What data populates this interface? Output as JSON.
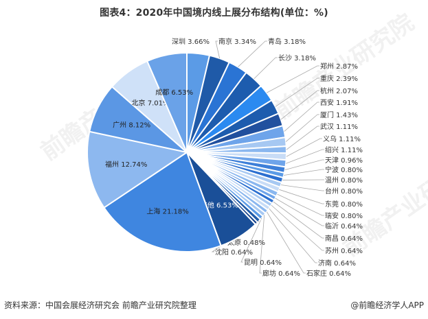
{
  "title": "图表4：2020年中国境内线上展分布结构(单位：%)",
  "footer": {
    "source": "资料来源：中国会展经济研究会 前瞻产业研究院整理",
    "credit": "@前瞻经济学人APP"
  },
  "watermark": "前瞻产业研究院",
  "chart_data": {
    "type": "pie",
    "title": "图表4：2020年中国境内线上展分布结构(单位：%)",
    "unit": "%",
    "start_angle": "12 o'clock, clockwise",
    "categories": [
      "深圳",
      "南京",
      "青岛",
      "长沙",
      "郑州",
      "重庆",
      "杭州",
      "西安",
      "厦门",
      "武汉",
      "义乌",
      "绍兴",
      "天津",
      "宁波",
      "温州",
      "台州",
      "东莞",
      "瑞安",
      "临沂",
      "南昌",
      "苏州",
      "济南",
      "石家庄",
      "廊坊",
      "昆明",
      "沈阳",
      "太原",
      "其他",
      "上海",
      "福州",
      "广州",
      "北京",
      "成都"
    ],
    "values": [
      3.66,
      3.34,
      3.18,
      3.18,
      2.87,
      2.39,
      2.07,
      1.91,
      1.43,
      1.11,
      1.11,
      1.11,
      0.96,
      0.8,
      0.8,
      0.8,
      0.8,
      0.8,
      0.64,
      0.64,
      0.64,
      0.64,
      0.64,
      0.64,
      0.64,
      0.64,
      0.48,
      6.53,
      21.18,
      12.74,
      8.12,
      7.01,
      6.53
    ],
    "colors": [
      "#5b9be6",
      "#1f5aa8",
      "#2a74d4",
      "#1d5cae",
      "#2b8af0",
      "#1d5cae",
      "#21509e",
      "#6ea4ea",
      "#a6c8f2",
      "#8ab7ef",
      "#c8dcf6",
      "#6ea4ea",
      "#3d7fd8",
      "#5b9be6",
      "#2b6fd0",
      "#a6c8f2",
      "#c8dcf6",
      "#8ab7ef",
      "#6ea4ea",
      "#2b6fd0",
      "#a6c8f2",
      "#c8dcf6",
      "#8ab7ef",
      "#a6c8f2",
      "#5b9be6",
      "#1f5aa8",
      "#16428a",
      "#1a4f98",
      "#3f86e0",
      "#8db8ef",
      "#5b97e4",
      "#cfe1f8",
      "#6aa2e8"
    ],
    "inside_labels": [
      "其他",
      "上海",
      "福州",
      "广州",
      "北京",
      "成都"
    ],
    "legend": "none (data labels with leader lines)"
  }
}
